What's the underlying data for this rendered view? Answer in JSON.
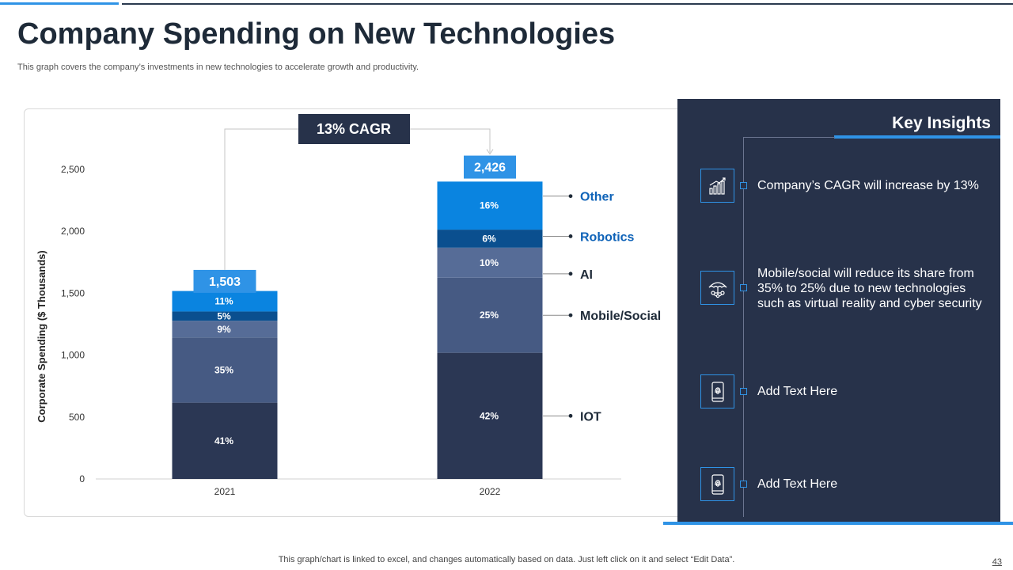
{
  "header": {
    "title": "Company Spending on New Technologies",
    "subtitle": "This graph covers the company’s investments in new technologies to accelerate growth and productivity."
  },
  "chart_data": {
    "type": "bar",
    "stacked": true,
    "ylabel": "Corporate Spending ($ Thousands)",
    "xlabel": "",
    "ylim": [
      0,
      2500
    ],
    "yticks": [
      0,
      500,
      1000,
      1500,
      2000,
      2500
    ],
    "ytick_labels": [
      "0",
      "500",
      "1,000",
      "1,500",
      "2,000",
      "2,500"
    ],
    "categories": [
      "2021",
      "2022"
    ],
    "totals": [
      1503,
      2426
    ],
    "total_labels": [
      "1,503",
      "2,426"
    ],
    "series": [
      {
        "name": "IOT",
        "percents": [
          41,
          42
        ],
        "labels": [
          "41%",
          "42%"
        ],
        "color": "#2b3754"
      },
      {
        "name": "Mobile/Social",
        "percents": [
          35,
          25
        ],
        "labels": [
          "35%",
          "25%"
        ],
        "color": "#465a83"
      },
      {
        "name": "AI",
        "percents": [
          9,
          10
        ],
        "labels": [
          "9%",
          "10%"
        ],
        "color": "#566c97"
      },
      {
        "name": "Robotics",
        "percents": [
          5,
          6
        ],
        "labels": [
          "5%",
          "6%"
        ],
        "color": "#0a4f8f"
      },
      {
        "name": "Other",
        "percents": [
          11,
          16
        ],
        "labels": [
          "11%",
          "16%"
        ],
        "color": "#0a84e0"
      }
    ],
    "annotation": "13% CAGR",
    "total_color": "#2f93e6",
    "annotation_color": "#27324a",
    "legend_color_blue": "#0f63b8",
    "legend_color_dark": "#1e2a38"
  },
  "insights": {
    "title": "Key Insights",
    "items": [
      {
        "icon": "growth-chart-icon",
        "text": "Company’s CAGR will increase by 13%"
      },
      {
        "icon": "umbrella-network-icon",
        "text": "Mobile/social will reduce its share from 35% to 25% due to new technologies such as virtual reality and cyber security"
      },
      {
        "icon": "smartphone-fingerprint-icon",
        "text": "Add Text Here"
      },
      {
        "icon": "smartphone-fingerprint-icon",
        "text": "Add Text Here"
      }
    ]
  },
  "footer": {
    "note": "This graph/chart is linked to excel,  and changes automatically based on data. Just left click on it and select “Edit Data”.",
    "page_number": "43"
  }
}
